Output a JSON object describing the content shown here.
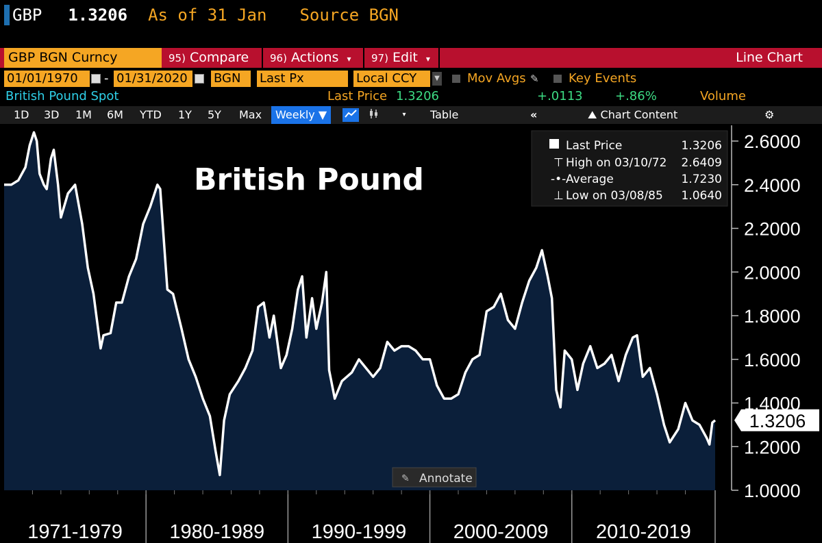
{
  "header": {
    "ticker": "GBP",
    "price": "1.3206",
    "as_of": "As of 31 Jan",
    "source": "Source BGN"
  },
  "toolbar": {
    "security": "GBP BGN Curncy",
    "compare": {
      "num": "95)",
      "label": "Compare"
    },
    "actions": {
      "num": "96)",
      "label": "Actions"
    },
    "edit": {
      "num": "97)",
      "label": "Edit"
    },
    "chart_type": "Line Chart"
  },
  "settings": {
    "start_date": "01/01/1970",
    "end_date": "01/31/2020",
    "date_separator": "-",
    "pricing_source": "BGN",
    "field": "Last Px",
    "currency": "Local CCY",
    "mov_avgs": "Mov Avgs",
    "key_events": "Key Events"
  },
  "info": {
    "name": "British Pound Spot",
    "last_price_label": "Last Price",
    "last_price": "1.3206",
    "change": "+.0113",
    "change_pct": "+.86%",
    "volume": "Volume"
  },
  "periods": [
    "1D",
    "3D",
    "1M",
    "6M",
    "YTD",
    "1Y",
    "5Y",
    "Max"
  ],
  "frequency": "Weekly",
  "table_label": "Table",
  "chart_content_label": "Chart Content",
  "annotate_label": "Annotate",
  "colors": {
    "background": "#000000",
    "fill": "#0b1f3a",
    "line": "#ffffff",
    "accent_orange": "#f5a623",
    "toolbar_red": "#b8102e",
    "green": "#3ddc84",
    "blue": "#1a73e8"
  },
  "chart_data": {
    "type": "area",
    "title": "British Pound",
    "x_tick_labels": [
      "1971-1979",
      "1980-1989",
      "1990-1999",
      "2000-2009",
      "2010-2019"
    ],
    "y_ticks": [
      "2.6000",
      "2.4000",
      "2.2000",
      "2.0000",
      "1.8000",
      "1.6000",
      "1.4000",
      "1.2000",
      "1.0000"
    ],
    "ylim": [
      0.97,
      2.67
    ],
    "xlim": [
      1970.0,
      2020.1
    ],
    "last_value_label": "1.3206",
    "legend": {
      "last_price": {
        "label": "Last Price",
        "value": "1.3206"
      },
      "high": {
        "label": "High on 03/10/72",
        "value": "2.6409"
      },
      "average": {
        "label": "Average",
        "value": "1.7230"
      },
      "low": {
        "label": "Low on 03/08/85",
        "value": "1.0640"
      }
    },
    "series": [
      {
        "name": "Last Price",
        "points": [
          [
            1970.0,
            2.4
          ],
          [
            1970.5,
            2.4
          ],
          [
            1971.0,
            2.42
          ],
          [
            1971.5,
            2.48
          ],
          [
            1971.8,
            2.58
          ],
          [
            1972.1,
            2.64
          ],
          [
            1972.3,
            2.6
          ],
          [
            1972.5,
            2.45
          ],
          [
            1972.8,
            2.4
          ],
          [
            1973.0,
            2.38
          ],
          [
            1973.3,
            2.52
          ],
          [
            1973.5,
            2.56
          ],
          [
            1973.8,
            2.4
          ],
          [
            1974.0,
            2.25
          ],
          [
            1974.5,
            2.36
          ],
          [
            1975.0,
            2.4
          ],
          [
            1975.5,
            2.22
          ],
          [
            1975.9,
            2.02
          ],
          [
            1976.3,
            1.9
          ],
          [
            1976.8,
            1.65
          ],
          [
            1977.0,
            1.71
          ],
          [
            1977.5,
            1.72
          ],
          [
            1977.9,
            1.86
          ],
          [
            1978.3,
            1.86
          ],
          [
            1978.8,
            1.98
          ],
          [
            1979.3,
            2.06
          ],
          [
            1979.8,
            2.22
          ],
          [
            1980.3,
            2.3
          ],
          [
            1980.8,
            2.4
          ],
          [
            1981.0,
            2.38
          ],
          [
            1981.5,
            1.92
          ],
          [
            1981.9,
            1.9
          ],
          [
            1982.5,
            1.74
          ],
          [
            1983.0,
            1.6
          ],
          [
            1983.5,
            1.52
          ],
          [
            1984.0,
            1.42
          ],
          [
            1984.5,
            1.34
          ],
          [
            1984.9,
            1.18
          ],
          [
            1985.2,
            1.07
          ],
          [
            1985.5,
            1.32
          ],
          [
            1985.9,
            1.44
          ],
          [
            1986.5,
            1.5
          ],
          [
            1987.0,
            1.56
          ],
          [
            1987.5,
            1.64
          ],
          [
            1987.9,
            1.84
          ],
          [
            1988.3,
            1.86
          ],
          [
            1988.7,
            1.7
          ],
          [
            1989.0,
            1.8
          ],
          [
            1989.5,
            1.56
          ],
          [
            1989.9,
            1.62
          ],
          [
            1990.3,
            1.74
          ],
          [
            1990.7,
            1.92
          ],
          [
            1991.0,
            1.98
          ],
          [
            1991.3,
            1.7
          ],
          [
            1991.7,
            1.88
          ],
          [
            1992.0,
            1.74
          ],
          [
            1992.4,
            1.86
          ],
          [
            1992.7,
            2.0
          ],
          [
            1992.9,
            1.55
          ],
          [
            1993.3,
            1.42
          ],
          [
            1993.8,
            1.5
          ],
          [
            1994.5,
            1.54
          ],
          [
            1995.0,
            1.6
          ],
          [
            1995.5,
            1.56
          ],
          [
            1996.0,
            1.52
          ],
          [
            1996.5,
            1.56
          ],
          [
            1997.0,
            1.68
          ],
          [
            1997.5,
            1.64
          ],
          [
            1998.0,
            1.66
          ],
          [
            1998.5,
            1.66
          ],
          [
            1999.0,
            1.64
          ],
          [
            1999.5,
            1.6
          ],
          [
            2000.0,
            1.6
          ],
          [
            2000.5,
            1.48
          ],
          [
            2001.0,
            1.42
          ],
          [
            2001.5,
            1.42
          ],
          [
            2002.0,
            1.44
          ],
          [
            2002.5,
            1.54
          ],
          [
            2003.0,
            1.6
          ],
          [
            2003.5,
            1.62
          ],
          [
            2004.0,
            1.82
          ],
          [
            2004.5,
            1.84
          ],
          [
            2005.0,
            1.9
          ],
          [
            2005.5,
            1.78
          ],
          [
            2006.0,
            1.74
          ],
          [
            2006.5,
            1.86
          ],
          [
            2007.0,
            1.96
          ],
          [
            2007.5,
            2.02
          ],
          [
            2007.9,
            2.1
          ],
          [
            2008.3,
            1.98
          ],
          [
            2008.6,
            1.88
          ],
          [
            2008.9,
            1.46
          ],
          [
            2009.2,
            1.38
          ],
          [
            2009.5,
            1.64
          ],
          [
            2010.0,
            1.6
          ],
          [
            2010.4,
            1.46
          ],
          [
            2010.8,
            1.58
          ],
          [
            2011.3,
            1.66
          ],
          [
            2011.8,
            1.56
          ],
          [
            2012.3,
            1.58
          ],
          [
            2012.8,
            1.62
          ],
          [
            2013.3,
            1.5
          ],
          [
            2013.8,
            1.62
          ],
          [
            2014.3,
            1.7
          ],
          [
            2014.6,
            1.71
          ],
          [
            2015.0,
            1.52
          ],
          [
            2015.5,
            1.56
          ],
          [
            2016.0,
            1.44
          ],
          [
            2016.5,
            1.3
          ],
          [
            2016.9,
            1.22
          ],
          [
            2017.5,
            1.28
          ],
          [
            2018.0,
            1.4
          ],
          [
            2018.5,
            1.32
          ],
          [
            2019.0,
            1.3
          ],
          [
            2019.5,
            1.24
          ],
          [
            2019.7,
            1.21
          ],
          [
            2019.9,
            1.31
          ],
          [
            2020.1,
            1.3206
          ]
        ]
      }
    ]
  }
}
